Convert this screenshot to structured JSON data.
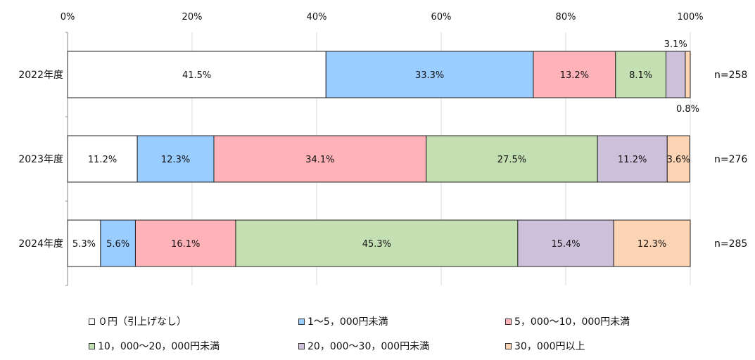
{
  "chart_data": {
    "type": "bar",
    "orientation": "horizontal",
    "stacked": true,
    "percent": true,
    "categories": [
      "2022年度",
      "2023年度",
      "2024年度"
    ],
    "n_labels": [
      "n=258",
      "n=276",
      "n=285"
    ],
    "x_ticks": [
      "0%",
      "20%",
      "40%",
      "60%",
      "80%",
      "100%"
    ],
    "xlim": [
      0,
      100
    ],
    "grid": true,
    "legend_position": "bottom",
    "series": [
      {
        "name": "０円（引上げなし）",
        "color": "#ffffff",
        "values": [
          41.5,
          11.2,
          5.3
        ],
        "labels": [
          "41.5%",
          "11.2%",
          "5.3%"
        ]
      },
      {
        "name": "1～5，000円未満",
        "color": "#99ccff",
        "values": [
          33.3,
          12.3,
          5.6
        ],
        "labels": [
          "33.3%",
          "12.3%",
          "5.6%"
        ]
      },
      {
        "name": "5，000～10，000円未満",
        "color": "#ffb3b8",
        "values": [
          13.2,
          34.1,
          16.1
        ],
        "labels": [
          "13.2%",
          "34.1%",
          "16.1%"
        ]
      },
      {
        "name": "10，000～20，000円未満",
        "color": "#c4e0b2",
        "values": [
          8.1,
          27.5,
          45.3
        ],
        "labels": [
          "8.1%",
          "27.5%",
          "45.3%"
        ]
      },
      {
        "name": "20，000～30，000円未満",
        "color": "#ccc0da",
        "values": [
          3.1,
          11.2,
          15.4
        ],
        "labels": [
          "3.1%",
          "11.2%",
          "15.4%"
        ]
      },
      {
        "name": "30，000円以上",
        "color": "#fcd4b4",
        "values": [
          0.8,
          3.6,
          12.3
        ],
        "labels": [
          "0.8%",
          "3.6%",
          "12.3%"
        ]
      }
    ]
  }
}
